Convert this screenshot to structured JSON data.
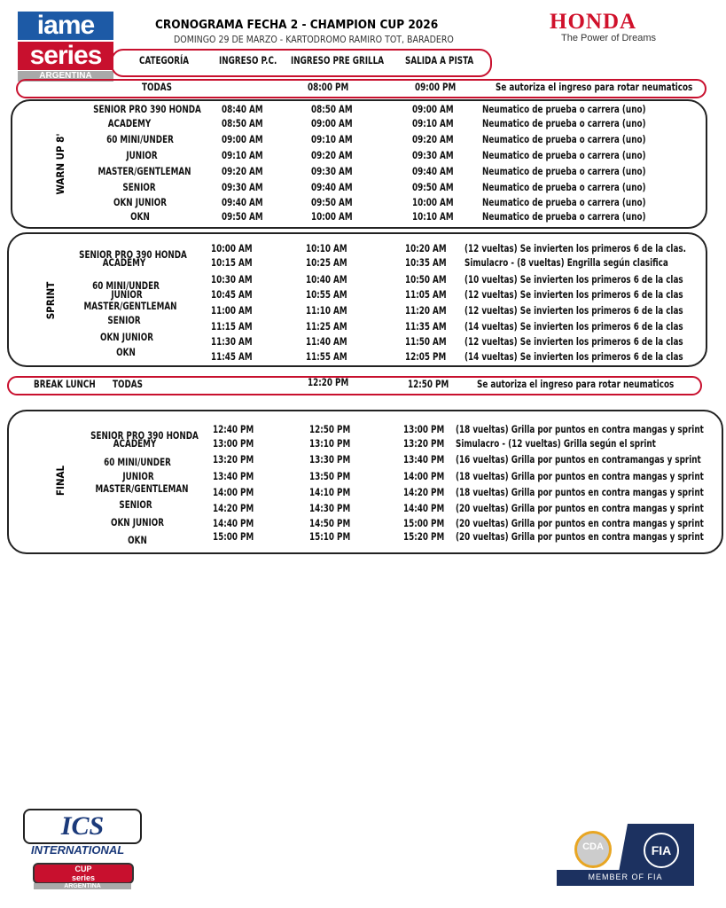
{
  "logos": {
    "iame": {
      "line1": "iame",
      "line2": "series",
      "line3": "ARGENTINA"
    },
    "honda": {
      "name": "HONDA",
      "tagline": "The Power of Dreams"
    },
    "ics": {
      "name": "ICS",
      "sub": "INTERNATIONAL",
      "cup1": "CUP",
      "cup2": "series",
      "cup3": "ARGENTINA"
    },
    "fia": {
      "cda": "CDA",
      "fia": "FIA",
      "member": "MEMBER OF FIA"
    }
  },
  "header": {
    "title": "CRONOGRAMA FECHA 2 - CHAMPION CUP 2026",
    "subtitle": "DOMINGO 29 DE MARZO - KARTODROMO RAMIRO TOT, BARADERO",
    "columns": [
      "CATEGORÍA",
      "INGRESO P.C.",
      "INGRESO PRE GRILLA",
      "SALIDA A PISTA"
    ]
  },
  "todas_row": {
    "category": "TODAS",
    "pre_grilla": "08:00 PM",
    "salida": "09:00 PM",
    "note": "Se autoriza el ingreso para rotar neumaticos"
  },
  "warmup": {
    "label": "WARN UP 8'",
    "rows": [
      {
        "category": "SENIOR PRO 390 HONDA",
        "pc": "08:40 AM",
        "pre_grilla": "08:50 AM",
        "salida": "09:00 AM",
        "note": "Neumatico de prueba o carrera (uno)"
      },
      {
        "category": "ACADEMY",
        "pc": "08:50 AM",
        "pre_grilla": "09:00 AM",
        "salida": "09:10 AM",
        "note": "Neumatico de prueba o carrera (uno)"
      },
      {
        "category": "60 MINI/UNDER",
        "pc": "09:00 AM",
        "pre_grilla": "09:10 AM",
        "salida": "09:20 AM",
        "note": "Neumatico de prueba o carrera (uno)"
      },
      {
        "category": "JUNIOR",
        "pc": "09:10 AM",
        "pre_grilla": "09:20 AM",
        "salida": "09:30 AM",
        "note": "Neumatico de prueba o carrera (uno)"
      },
      {
        "category": "MASTER/GENTLEMAN",
        "pc": "09:20 AM",
        "pre_grilla": "09:30 AM",
        "salida": "09:40 AM",
        "note": "Neumatico de prueba o carrera (uno)"
      },
      {
        "category": "SENIOR",
        "pc": "09:30 AM",
        "pre_grilla": "09:40 AM",
        "salida": "09:50 AM",
        "note": "Neumatico de prueba o carrera (uno)"
      },
      {
        "category": "OKN JUNIOR",
        "pc": "09:40 AM",
        "pre_grilla": "09:50 AM",
        "salida": "10:00 AM",
        "note": "Neumatico de prueba o carrera (uno)"
      },
      {
        "category": "OKN",
        "pc": "09:50 AM",
        "pre_grilla": "10:00 AM",
        "salida": "10:10 AM",
        "note": "Neumatico de prueba o carrera (uno)"
      }
    ]
  },
  "sprint": {
    "label": "SPRINT",
    "rows": [
      {
        "category": "SENIOR PRO 390 HONDA",
        "pc": "10:00 AM",
        "pre_grilla": "10:10 AM",
        "salida": "10:20 AM",
        "note": "(12 vueltas) Se invierten los primeros 6 de la clas."
      },
      {
        "category": "ACADEMY",
        "pc": "10:15 AM",
        "pre_grilla": "10:25 AM",
        "salida": "10:35 AM",
        "note": "Simulacro - (8 vueltas) Engrilla según clasifica"
      },
      {
        "category": "60 MINI/UNDER",
        "pc": "10:30 AM",
        "pre_grilla": "10:40 AM",
        "salida": "10:50 AM",
        "note": "(10 vueltas) Se invierten los primeros 6 de la clas"
      },
      {
        "category": "JUNIOR",
        "pc": "10:45 AM",
        "pre_grilla": "10:55 AM",
        "salida": "11:05 AM",
        "note": "(12 vueltas) Se invierten los primeros 6 de la clas"
      },
      {
        "category": "MASTER/GENTLEMAN",
        "pc": "11:00 AM",
        "pre_grilla": "11:10 AM",
        "salida": "11:20 AM",
        "note": "(12 vueltas) Se invierten los primeros 6 de la clas"
      },
      {
        "category": "SENIOR",
        "pc": "11:15 AM",
        "pre_grilla": "11:25 AM",
        "salida": "11:35 AM",
        "note": "(14 vueltas) Se invierten los primeros 6 de la clas"
      },
      {
        "category": "OKN JUNIOR",
        "pc": "11:30 AM",
        "pre_grilla": "11:40 AM",
        "salida": "11:50 AM",
        "note": "(12 vueltas) Se invierten los primeros 6 de la clas"
      },
      {
        "category": "OKN",
        "pc": "11:45 AM",
        "pre_grilla": "11:55 AM",
        "salida": "12:05 PM",
        "note": "(14 vueltas) Se invierten los primeros 6 de la clas"
      }
    ]
  },
  "break_row": {
    "label": "BREAK LUNCH",
    "category": "TODAS",
    "pre_grilla": "12:20 PM",
    "salida": "12:50 PM",
    "note": "Se autoriza el ingreso para rotar neumaticos"
  },
  "final": {
    "label": "FINAL",
    "rows": [
      {
        "category": "SENIOR PRO 390 HONDA",
        "pc": "12:40 PM",
        "pre_grilla": "12:50 PM",
        "salida": "13:00 PM",
        "note": "(18 vueltas) Grilla por puntos en contra mangas y sprint"
      },
      {
        "category": "ACADEMY",
        "pc": "13:00 PM",
        "pre_grilla": "13:10 PM",
        "salida": "13:20 PM",
        "note": "Simulacro - (12 vueltas) Grilla según el sprint"
      },
      {
        "category": "60 MINI/UNDER",
        "pc": "13:20 PM",
        "pre_grilla": "13:30 PM",
        "salida": "13:40 PM",
        "note": "(16 vueltas) Grilla por puntos en contramangas y sprint"
      },
      {
        "category": "JUNIOR",
        "pc": "13:40 PM",
        "pre_grilla": "13:50 PM",
        "salida": "14:00 PM",
        "note": "(18 vueltas) Grilla por puntos en contra mangas y sprint"
      },
      {
        "category": "MASTER/GENTLEMAN",
        "pc": "14:00 PM",
        "pre_grilla": "14:10 PM",
        "salida": "14:20 PM",
        "note": "(18 vueltas) Grilla por puntos en contra mangas y sprint"
      },
      {
        "category": "SENIOR",
        "pc": "14:20 PM",
        "pre_grilla": "14:30 PM",
        "salida": "14:40 PM",
        "note": "(20 vueltas) Grilla por puntos en contra mangas y sprint"
      },
      {
        "category": "OKN JUNIOR",
        "pc": "14:40 PM",
        "pre_grilla": "14:50 PM",
        "salida": "15:00 PM",
        "note": "(20 vueltas) Grilla por puntos en contra mangas y sprint"
      },
      {
        "category": "OKN",
        "pc": "15:00 PM",
        "pre_grilla": "15:10 PM",
        "salida": "15:20 PM",
        "note": "(20 vueltas) Grilla por puntos en contra mangas y sprint"
      }
    ]
  },
  "colors": {
    "accent": "#c8102e",
    "iame_blue": "#1d5aa6",
    "fia_navy": "#1c3160"
  }
}
